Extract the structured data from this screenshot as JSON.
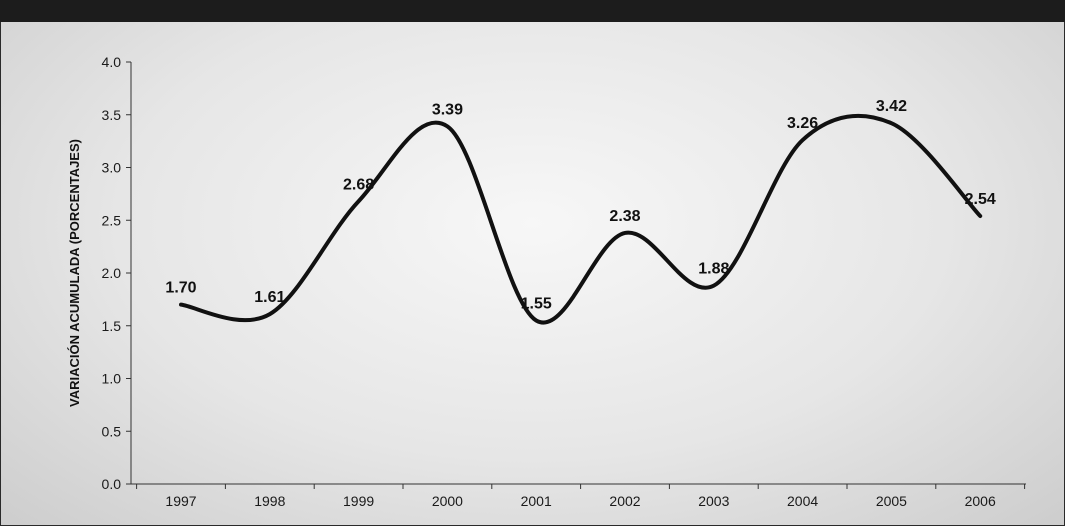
{
  "chart_data": {
    "type": "line",
    "title": "",
    "xlabel": "",
    "ylabel": "VARIACIÓN ACUMULADA (PORCENTAJES)",
    "categories": [
      "1997",
      "1998",
      "1999",
      "2000",
      "2001",
      "2002",
      "2003",
      "2004",
      "2005",
      "2006"
    ],
    "series": [
      {
        "values": [
          1.7,
          1.61,
          2.68,
          3.39,
          1.55,
          2.38,
          1.88,
          3.26,
          3.42,
          2.54
        ],
        "labels": [
          "1.70",
          "1.61",
          "2.68",
          "3.39",
          "1.55",
          "2.38",
          "1.88",
          "3.26",
          "3.42",
          "2.54"
        ]
      }
    ],
    "ylim": [
      0,
      4
    ],
    "yticks": [
      "0.0",
      "0.5",
      "1.0",
      "1.5",
      "2.0",
      "2.5",
      "3.0",
      "3.5",
      "4.0"
    ],
    "smooth": true,
    "grid": false,
    "colors": {
      "line": "#111111",
      "axis": "#333333",
      "panel_dark": "#1c1c1c"
    }
  }
}
